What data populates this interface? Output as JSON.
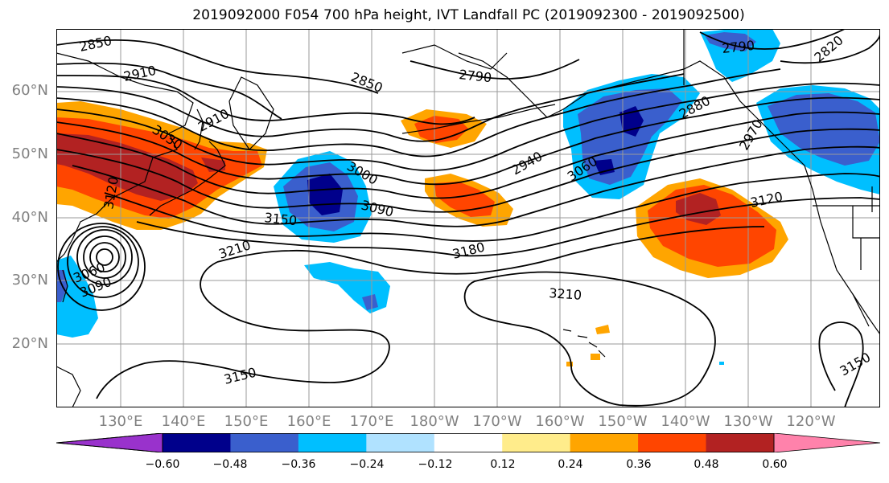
{
  "title": "2019092000 F054 700 hPa height, IVT Landfall PC (2019092300 - 2019092500)",
  "axes": {
    "lat_labels": [
      "60°N",
      "50°N",
      "40°N",
      "30°N",
      "20°N"
    ],
    "lon_labels": [
      "130°E",
      "140°E",
      "150°E",
      "160°E",
      "170°E",
      "180°W",
      "170°W",
      "160°W",
      "150°W",
      "140°W",
      "130°W",
      "120°W"
    ],
    "label_color": "#808080",
    "grid": true
  },
  "contours": {
    "variable": "700 hPa height",
    "color": "#000000",
    "labels": [
      "2850",
      "2910",
      "2850",
      "2790",
      "2790",
      "2820",
      "2910",
      "3030",
      "3120",
      "2880",
      "2970",
      "3000",
      "2940",
      "3060",
      "3090",
      "3150",
      "3120",
      "3180",
      "3210",
      "3210",
      "3060",
      "3090",
      "3150",
      "3150"
    ]
  },
  "colorbar": {
    "ticks": [
      "−0.60",
      "−0.48",
      "−0.36",
      "−0.24",
      "−0.12",
      "0.12",
      "0.24",
      "0.36",
      "0.48",
      "0.60"
    ],
    "colors": [
      "#9932CC",
      "#00008B",
      "#3A5FCD",
      "#00BFFF",
      "#B0E2FF",
      "#FFFFFF",
      "#FFEC8B",
      "#FFA500",
      "#FF4500",
      "#B22222",
      "#FF82AB"
    ],
    "extend": "both"
  }
}
